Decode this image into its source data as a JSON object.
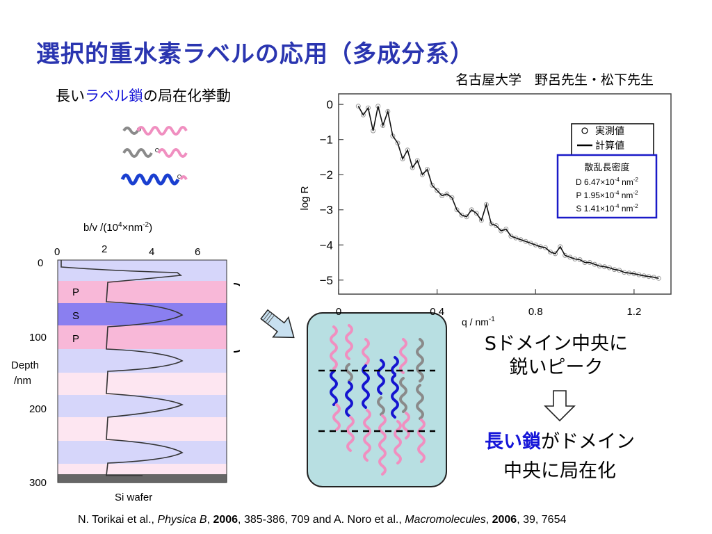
{
  "slide": {
    "title": "選択的重水素ラベルの応用（多成分系）",
    "affiliation": "名古屋大学　野呂先生・松下先生",
    "subtitle": {
      "part1": "長い",
      "part2": "ラベル鎖",
      "part3": "の局在化挙動"
    },
    "conclusion1": [
      "Sドメイン中央に",
      "鋭いピーク"
    ],
    "conclusion2": {
      "highlight": "長い鎖",
      "rest": "がドメイン",
      "line2": "中央に局在化"
    },
    "citation": {
      "a": "N. Torikai et al., ",
      "journal1": "Physica B",
      "b": ", ",
      "year1": "2006",
      "c": ", 385-386, 709 and A. Noro et al., ",
      "journal2": "Macromolecules",
      "d": ", ",
      "year2": "2006",
      "e": ", 39, 7654"
    }
  },
  "profile": {
    "xlabel_main": "b/v /(10",
    "xlabel_exp": "4",
    "xlabel_mid": "×nm",
    "xlabel_exp2": "-2",
    "xlabel_end": ")",
    "xticks": [
      "0",
      "2",
      "4",
      "6"
    ],
    "yticks": [
      "0",
      "100",
      "200",
      "300"
    ],
    "ylabel": [
      "Depth",
      "/nm"
    ],
    "layer_labels": [
      "P",
      "S",
      "P"
    ],
    "bottom_label": "Si wafer"
  },
  "chart_data": {
    "type": "scatter",
    "xlabel_main": "q / nm",
    "xlabel_exp": "-1",
    "ylabel": "log R",
    "xticks": [
      "0",
      "0.4",
      "0.8",
      "1.2"
    ],
    "yticks": [
      "0",
      "−1",
      "−2",
      "−3",
      "−4",
      "−5"
    ],
    "xlim": [
      0,
      1.35
    ],
    "ylim": [
      -5.4,
      0.3
    ],
    "legend": {
      "measured": "実測値",
      "calculated": "計算値"
    },
    "infobox": {
      "title": "散乱長密度",
      "lines": [
        {
          "pre": "D 6.47×10",
          "exp1": "-4",
          "mid": " nm",
          "exp2": "-2"
        },
        {
          "pre": "P 1.95×10",
          "exp1": "-4",
          "mid": " nm",
          "exp2": "-2"
        },
        {
          "pre": "S 1.41×10",
          "exp1": "-4",
          "mid": " nm",
          "exp2": "-2"
        }
      ]
    },
    "series": [
      {
        "name": "実測値",
        "x": [
          0.08,
          0.1,
          0.12,
          0.14,
          0.16,
          0.18,
          0.2,
          0.22,
          0.24,
          0.26,
          0.28,
          0.3,
          0.32,
          0.34,
          0.36,
          0.38,
          0.4,
          0.42,
          0.44,
          0.46,
          0.48,
          0.5,
          0.52,
          0.54,
          0.56,
          0.58,
          0.6,
          0.62,
          0.64,
          0.66,
          0.68,
          0.7,
          0.72,
          0.74,
          0.76,
          0.78,
          0.8,
          0.82,
          0.84,
          0.86,
          0.88,
          0.9,
          0.92,
          0.94,
          0.96,
          0.98,
          1.0,
          1.02,
          1.04,
          1.06,
          1.08,
          1.1,
          1.12,
          1.14,
          1.16,
          1.18,
          1.2,
          1.22,
          1.24,
          1.26,
          1.28,
          1.3
        ],
        "y": [
          -0.05,
          -0.3,
          -0.1,
          -0.75,
          -0.05,
          -0.6,
          -0.2,
          -0.9,
          -1.1,
          -1.55,
          -1.3,
          -1.8,
          -1.6,
          -2.0,
          -1.85,
          -2.3,
          -2.45,
          -2.6,
          -2.55,
          -2.65,
          -3.0,
          -3.15,
          -3.2,
          -3.0,
          -3.1,
          -3.3,
          -2.85,
          -3.4,
          -3.45,
          -3.6,
          -3.55,
          -3.75,
          -3.8,
          -3.85,
          -3.9,
          -3.95,
          -4.0,
          -4.05,
          -4.08,
          -4.2,
          -4.25,
          -4.05,
          -4.3,
          -4.35,
          -4.4,
          -4.42,
          -4.5,
          -4.5,
          -4.55,
          -4.6,
          -4.62,
          -4.65,
          -4.7,
          -4.72,
          -4.78,
          -4.8,
          -4.82,
          -4.85,
          -4.88,
          -4.9,
          -4.92,
          -4.95
        ]
      },
      {
        "name": "計算値",
        "x": [
          0.08,
          0.1,
          0.12,
          0.14,
          0.16,
          0.18,
          0.2,
          0.22,
          0.24,
          0.26,
          0.28,
          0.3,
          0.32,
          0.34,
          0.36,
          0.38,
          0.4,
          0.42,
          0.44,
          0.46,
          0.48,
          0.5,
          0.52,
          0.54,
          0.56,
          0.58,
          0.6,
          0.62,
          0.64,
          0.66,
          0.68,
          0.7,
          0.72,
          0.74,
          0.76,
          0.78,
          0.8,
          0.82,
          0.84,
          0.86,
          0.88,
          0.9,
          0.92,
          0.94,
          0.96,
          0.98,
          1.0,
          1.02,
          1.04,
          1.06,
          1.08,
          1.1,
          1.12,
          1.14,
          1.16,
          1.18,
          1.2,
          1.22,
          1.24,
          1.26,
          1.28,
          1.3
        ],
        "y": [
          -0.05,
          -0.3,
          -0.1,
          -0.75,
          -0.05,
          -0.6,
          -0.2,
          -0.9,
          -1.1,
          -1.55,
          -1.3,
          -1.8,
          -1.6,
          -2.0,
          -1.85,
          -2.3,
          -2.45,
          -2.6,
          -2.55,
          -2.65,
          -3.0,
          -3.15,
          -3.2,
          -3.0,
          -3.1,
          -3.3,
          -2.85,
          -3.4,
          -3.45,
          -3.6,
          -3.55,
          -3.75,
          -3.8,
          -3.85,
          -3.9,
          -3.95,
          -4.0,
          -4.05,
          -4.08,
          -4.2,
          -4.25,
          -4.05,
          -4.3,
          -4.35,
          -4.4,
          -4.42,
          -4.5,
          -4.5,
          -4.55,
          -4.6,
          -4.62,
          -4.65,
          -4.7,
          -4.72,
          -4.78,
          -4.8,
          -4.82,
          -4.85,
          -4.88,
          -4.9,
          -4.92,
          -4.95
        ]
      }
    ]
  }
}
